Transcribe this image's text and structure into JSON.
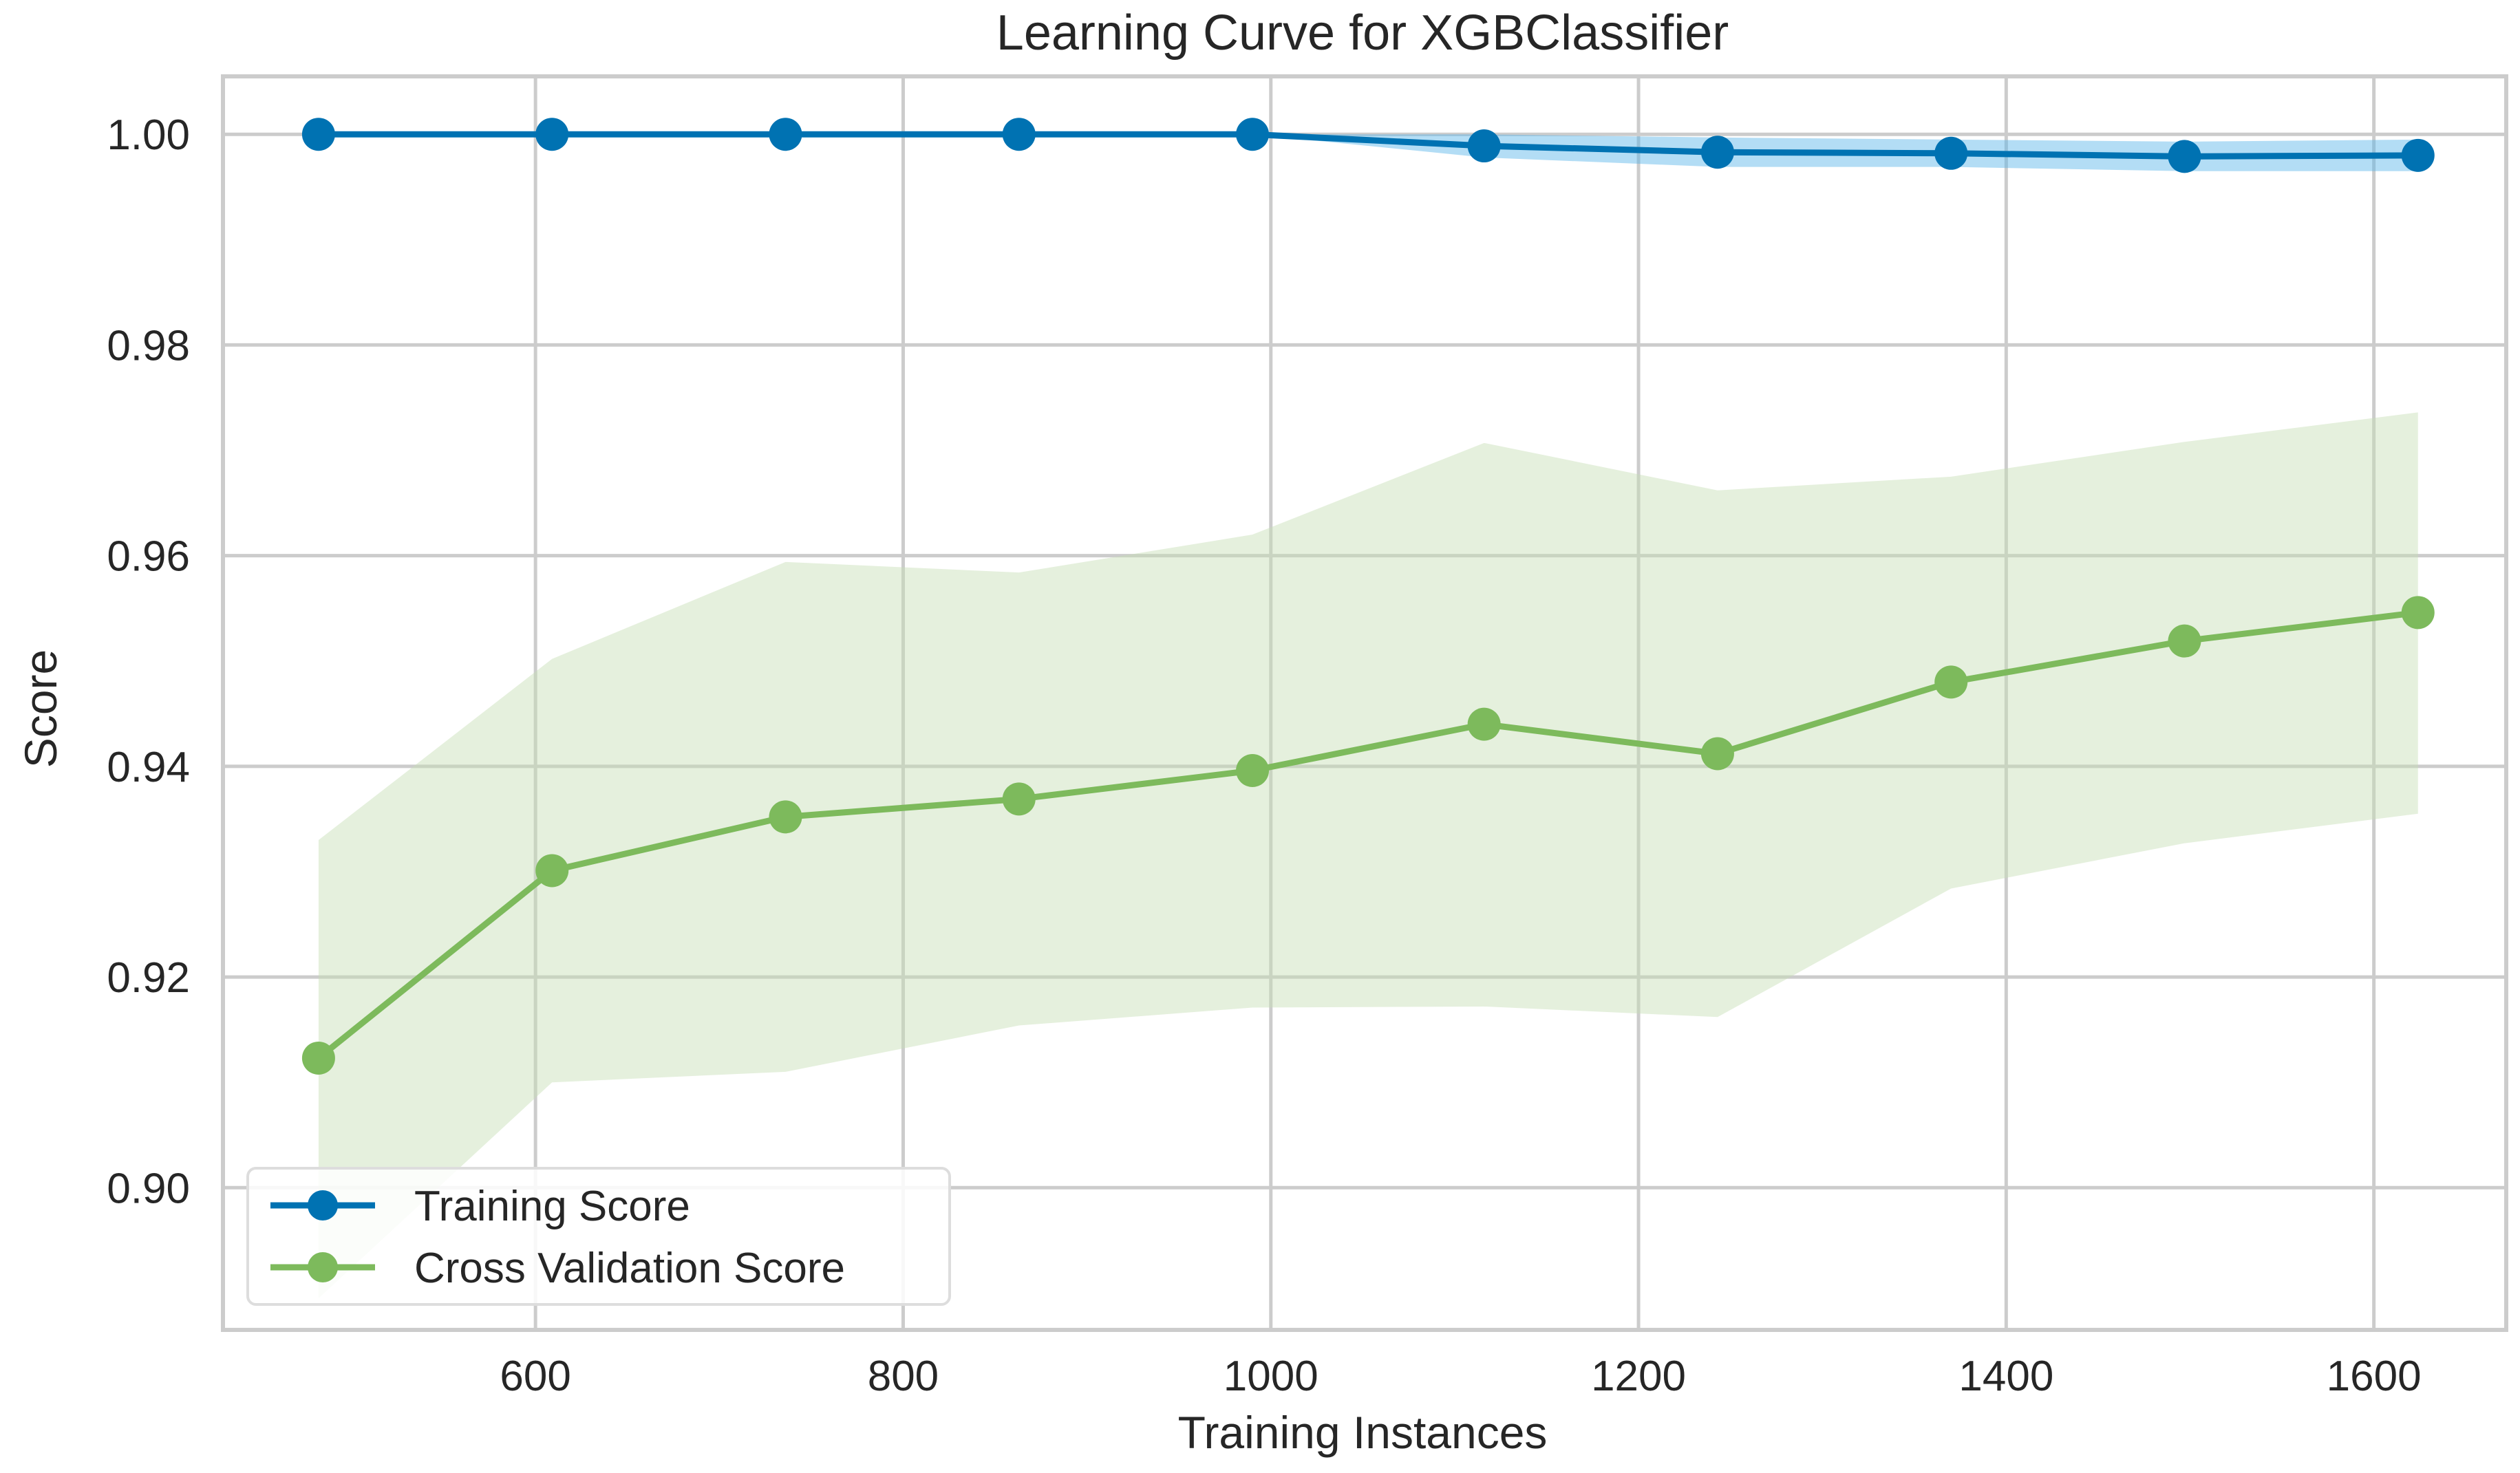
{
  "chart_data": {
    "type": "line",
    "title": "Learning Curve for XGBClassifier",
    "xlabel": "Training Instances",
    "ylabel": "Score",
    "xlim": [
      430,
      1672
    ],
    "ylim": [
      0.8865,
      1.0055
    ],
    "xticks": [
      600,
      800,
      1000,
      1200,
      1400,
      1600
    ],
    "yticks": [
      0.9,
      0.92,
      0.94,
      0.96,
      0.98,
      1.0
    ],
    "xtick_labels": [
      "600",
      "800",
      "1000",
      "1200",
      "1400",
      "1600"
    ],
    "ytick_labels": [
      "0.90",
      "0.92",
      "0.94",
      "0.96",
      "0.98",
      "1.00"
    ],
    "grid": true,
    "legend_position": "lower-left",
    "x": [
      482,
      609,
      736,
      863,
      990,
      1116,
      1243,
      1370,
      1497,
      1624
    ],
    "series": [
      {
        "name": "Training Score",
        "color": "#0072B2",
        "band_color": "#56B4E9",
        "values": [
          1.0,
          1.0,
          1.0,
          1.0,
          1.0,
          0.9989,
          0.9983,
          0.9982,
          0.9979,
          0.998
        ],
        "upper": [
          1.0,
          1.0,
          1.0,
          1.0,
          1.0,
          1.0,
          0.9997,
          0.9995,
          0.9993,
          0.9995
        ],
        "lower": [
          1.0,
          1.0,
          1.0,
          1.0,
          1.0,
          0.9978,
          0.9969,
          0.9969,
          0.9965,
          0.9965
        ]
      },
      {
        "name": "Cross Validation Score",
        "color": "#7DBA5C",
        "band_color": "#C5DEB3",
        "values": [
          0.9123,
          0.9301,
          0.9352,
          0.9369,
          0.9396,
          0.944,
          0.9412,
          0.948,
          0.9519,
          0.9546
        ],
        "upper": [
          0.933,
          0.9502,
          0.9594,
          0.9584,
          0.962,
          0.9707,
          0.9662,
          0.9675,
          0.9708,
          0.9736
        ],
        "lower": [
          0.8895,
          0.91,
          0.911,
          0.9154,
          0.9171,
          0.9172,
          0.9162,
          0.9284,
          0.9327,
          0.9355
        ]
      }
    ]
  }
}
